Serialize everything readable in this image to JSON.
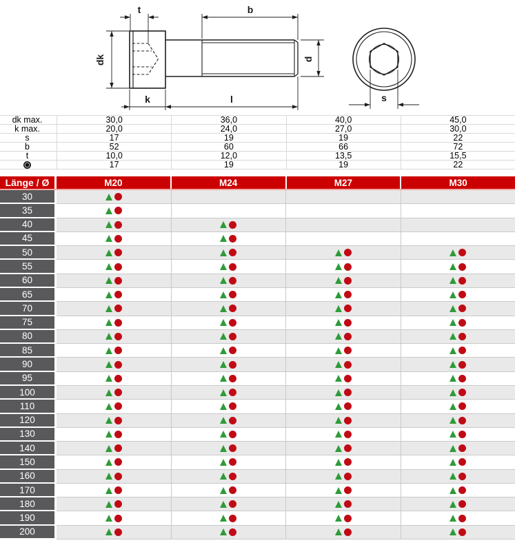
{
  "drawing": {
    "labels": {
      "t": "t",
      "b": "b",
      "dk": "dk",
      "k": "k",
      "l": "l",
      "d": "d",
      "s": "s"
    }
  },
  "spec_table": {
    "rows": [
      {
        "label": "dk max.",
        "values": [
          "30,0",
          "36,0",
          "40,0",
          "45,0"
        ]
      },
      {
        "label": "k max.",
        "values": [
          "20,0",
          "24,0",
          "27,0",
          "30,0"
        ]
      },
      {
        "label": "s",
        "values": [
          "17",
          "19",
          "19",
          "22"
        ]
      },
      {
        "label": "b",
        "values": [
          "52",
          "60",
          "66",
          "72"
        ]
      },
      {
        "label": "t",
        "values": [
          "10,0",
          "12,0",
          "13,5",
          "15,5"
        ]
      },
      {
        "label": "",
        "icon": "hex-socket-icon",
        "values": [
          "17",
          "19",
          "19",
          "22"
        ]
      }
    ]
  },
  "size_header": {
    "label": "Länge / Ø",
    "columns": [
      "M20",
      "M24",
      "M27",
      "M30"
    ]
  },
  "availability": {
    "lengths": [
      "30",
      "35",
      "40",
      "45",
      "50",
      "55",
      "60",
      "65",
      "70",
      "75",
      "80",
      "85",
      "90",
      "95",
      "100",
      "110",
      "120",
      "130",
      "140",
      "150",
      "160",
      "170",
      "180",
      "190",
      "200"
    ],
    "matrix": [
      [
        1,
        0,
        0,
        0
      ],
      [
        1,
        0,
        0,
        0
      ],
      [
        1,
        1,
        0,
        0
      ],
      [
        1,
        1,
        0,
        0
      ],
      [
        1,
        1,
        1,
        1
      ],
      [
        1,
        1,
        1,
        1
      ],
      [
        1,
        1,
        1,
        1
      ],
      [
        1,
        1,
        1,
        1
      ],
      [
        1,
        1,
        1,
        1
      ],
      [
        1,
        1,
        1,
        1
      ],
      [
        1,
        1,
        1,
        1
      ],
      [
        1,
        1,
        1,
        1
      ],
      [
        1,
        1,
        1,
        1
      ],
      [
        1,
        1,
        1,
        1
      ],
      [
        1,
        1,
        1,
        1
      ],
      [
        1,
        1,
        1,
        1
      ],
      [
        1,
        1,
        1,
        1
      ],
      [
        1,
        1,
        1,
        1
      ],
      [
        1,
        1,
        1,
        1
      ],
      [
        1,
        1,
        1,
        1
      ],
      [
        1,
        1,
        1,
        1
      ],
      [
        1,
        1,
        1,
        1
      ],
      [
        1,
        1,
        1,
        1
      ],
      [
        1,
        1,
        1,
        1
      ],
      [
        1,
        1,
        1,
        1
      ]
    ]
  },
  "icons": {
    "availability-triangle": "▲",
    "availability-circle": "●",
    "hex-socket-icon": "◉"
  },
  "colors": {
    "header_red": "#cb0001",
    "header_underline": "#f2a9a6",
    "row_label_gray": "#59595b",
    "row_shade": "#e9e9e9",
    "grid": "#c9c9c9",
    "triangle_green": "#2e9b38",
    "circle_red": "#c00b15"
  }
}
